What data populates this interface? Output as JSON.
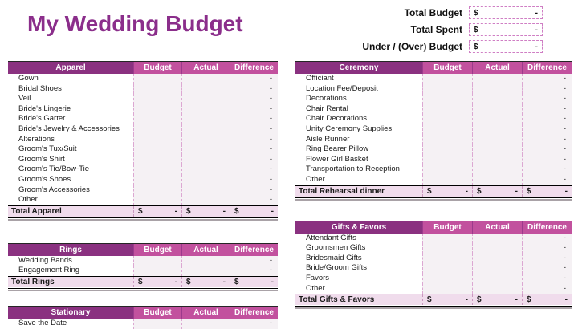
{
  "page": {
    "title": "My Wedding Budget"
  },
  "summary": {
    "rows": [
      {
        "label": "Total Budget",
        "currency": "$",
        "value": "-"
      },
      {
        "label": "Total Spent",
        "currency": "$",
        "value": "-"
      },
      {
        "label": "Under / (Over) Budget",
        "currency": "$",
        "value": "-"
      }
    ]
  },
  "table_columns": [
    "Budget",
    "Actual",
    "Difference"
  ],
  "placeholders": {
    "dash": "-",
    "dollar": "$"
  },
  "colors": {
    "section_header": "#8A3180",
    "column_header": "#C2519E",
    "total_row": "#F0DCEC",
    "title_text": "#8B2E8B"
  },
  "tables": [
    {
      "id": "apparel",
      "title": "Apparel",
      "column": "left",
      "items": [
        "Gown",
        "Bridal Shoes",
        "Veil",
        "Bride's Lingerie",
        "Bride's Garter",
        "Bride's Jewelry & Accessories",
        "Alterations",
        "Groom's Tux/Suit",
        "Groom's Shirt",
        "Groom's Tie/Bow-Tie",
        "Groom's Shoes",
        "Groom's Accessories",
        "Other"
      ],
      "total_label": "Total Apparel"
    },
    {
      "id": "rings",
      "title": "Rings",
      "column": "left",
      "items": [
        "Wedding Bands",
        "Engagement Ring"
      ],
      "total_label": "Total Rings"
    },
    {
      "id": "stationary",
      "title": "Stationary",
      "column": "left",
      "items": [
        "Save the Date"
      ],
      "total_label": null
    },
    {
      "id": "ceremony",
      "title": "Ceremony",
      "column": "right",
      "items": [
        "Officiant",
        "Location Fee/Deposit",
        "Decorations",
        "Chair Rental",
        "Chair Decorations",
        "Unity Ceremony Supplies",
        "Aisle Runner",
        "Ring Bearer Pillow",
        "Flower Girl Basket",
        "Transportation to Reception",
        "Other"
      ],
      "total_label": "Total Rehearsal dinner"
    },
    {
      "id": "gifts-favors",
      "title": "Gifts & Favors",
      "column": "right",
      "items": [
        "Attendant Gifts",
        "Groomsmen Gifts",
        "Bridesmaid Gifts",
        "Bride/Groom Gifts",
        "Favors",
        "Other"
      ],
      "total_label": "Total Gifts & Favors"
    }
  ]
}
